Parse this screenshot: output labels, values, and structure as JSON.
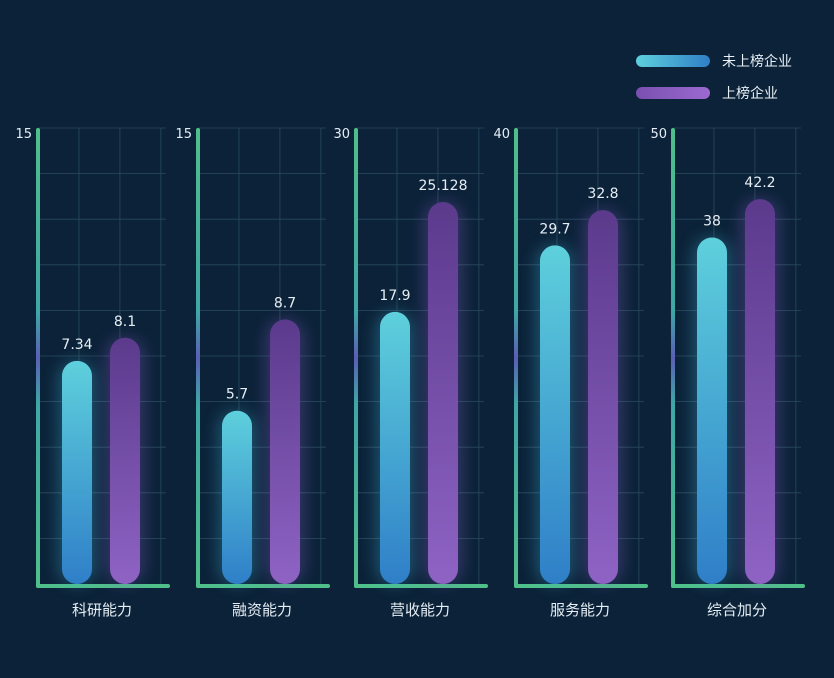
{
  "colors": {
    "background": "#0b2238",
    "grid": "#2a4a5e",
    "axis": "#4fc08a",
    "series_a_top": "#5ed0dc",
    "series_a_bottom": "#2f7fc8",
    "series_b_top": "#5b3a8c",
    "series_b_bottom": "#8e63c4"
  },
  "legend": [
    {
      "label": "未上榜企业"
    },
    {
      "label": "上榜企业"
    }
  ],
  "chart_data": [
    {
      "type": "bar",
      "category": "科研能力",
      "ymax": 15,
      "ymax_label": "15",
      "series": [
        {
          "name": "未上榜企业",
          "value": 7.34,
          "label": "7.34"
        },
        {
          "name": "上榜企业",
          "value": 8.1,
          "label": "8.1"
        }
      ]
    },
    {
      "type": "bar",
      "category": "融资能力",
      "ymax": 15,
      "ymax_label": "15",
      "series": [
        {
          "name": "未上榜企业",
          "value": 5.7,
          "label": "5.7"
        },
        {
          "name": "上榜企业",
          "value": 8.7,
          "label": "8.7"
        }
      ]
    },
    {
      "type": "bar",
      "category": "营收能力",
      "ymax": 30,
      "ymax_label": "30",
      "series": [
        {
          "name": "未上榜企业",
          "value": 17.9,
          "label": "17.9"
        },
        {
          "name": "上榜企业",
          "value": 25.128,
          "label": "25.128"
        }
      ]
    },
    {
      "type": "bar",
      "category": "服务能力",
      "ymax": 40,
      "ymax_label": "40",
      "series": [
        {
          "name": "未上榜企业",
          "value": 29.7,
          "label": "29.7"
        },
        {
          "name": "上榜企业",
          "value": 32.8,
          "label": "32.8"
        }
      ]
    },
    {
      "type": "bar",
      "category": "综合加分",
      "ymax": 50,
      "ymax_label": "50",
      "series": [
        {
          "name": "未上榜企业",
          "value": 38,
          "label": "38"
        },
        {
          "name": "上榜企业",
          "value": 42.2,
          "label": "42.2"
        }
      ]
    }
  ]
}
